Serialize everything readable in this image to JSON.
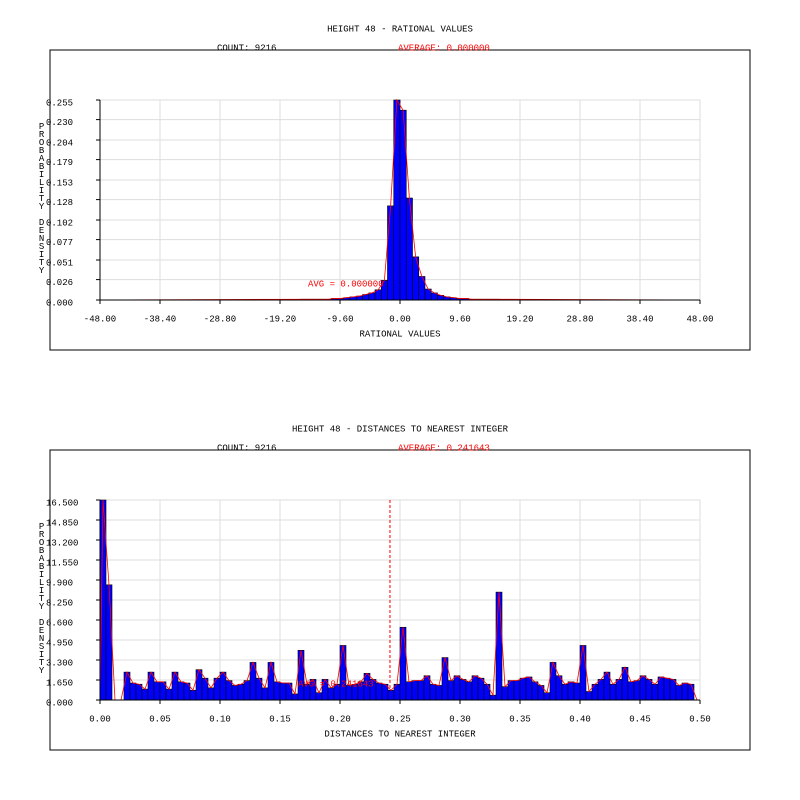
{
  "chart_data": [
    {
      "type": "histogram",
      "title": "HEIGHT 48 - RATIONAL VALUES",
      "count_label": "COUNT: 9216",
      "average_label": "AVERAGE: 0.000000",
      "average": 0,
      "avg_annotation": "AVG = 0.000000",
      "xlabel": "RATIONAL VALUES",
      "ylabel": "PROBABILITY DENSITY",
      "bins": [
        -16,
        -15,
        -14,
        -13,
        -12,
        -11,
        -10,
        -9,
        -8,
        -7,
        -6,
        -5,
        -4,
        -3,
        -2,
        -1,
        0,
        1,
        2,
        3,
        4,
        5,
        6,
        7,
        8,
        9,
        10,
        11,
        12,
        13,
        14,
        15,
        16
      ],
      "values": [
        0.001,
        0.001,
        0.001,
        0.001,
        0.001,
        0.002,
        0.002,
        0.003,
        0.004,
        0.005,
        0.007,
        0.009,
        0.013,
        0.025,
        0.12,
        0.255,
        0.242,
        0.13,
        0.055,
        0.03,
        0.014,
        0.009,
        0.006,
        0.004,
        0.003,
        0.002,
        0.002,
        0.001,
        0.001,
        0.001,
        0.001,
        0.001
      ],
      "color": "#0000ff",
      "line_color": "#ff0000",
      "xlim": [
        -48,
        48
      ],
      "xticks": [
        {
          "value": -48,
          "label": "-48.00"
        },
        {
          "value": -38.4,
          "label": "-38.40"
        },
        {
          "value": -28.8,
          "label": "-28.80"
        },
        {
          "value": -19.2,
          "label": "-19.20"
        },
        {
          "value": -9.6,
          "label": "-9.60"
        },
        {
          "value": 0,
          "label": "0.00"
        },
        {
          "value": 9.6,
          "label": "9.60"
        },
        {
          "value": 19.2,
          "label": "19.20"
        },
        {
          "value": 28.8,
          "label": "28.80"
        },
        {
          "value": 38.4,
          "label": "38.40"
        },
        {
          "value": 48,
          "label": "48.00"
        }
      ],
      "ylim": [
        0,
        0.255
      ],
      "yticks": [
        {
          "value": 0,
          "label": "0.000"
        },
        0.026,
        0.051,
        0.077,
        0.102,
        0.128,
        0.153,
        0.179,
        0.204,
        {
          "value": 0.23,
          "label": "0.230"
        },
        0.255
      ],
      "grid": true
    },
    {
      "type": "histogram",
      "title": "HEIGHT 48 - DISTANCES TO NEAREST INTEGER",
      "count_label": "COUNT: 9216",
      "average_label": "AVERAGE: 0.241643",
      "average": 0.241643,
      "avg_annotation": "AVG = 0.241643",
      "xlabel": "DISTANCES TO NEAREST INTEGER",
      "ylabel": "PROBABILITY DENSITY",
      "bins": [
        0,
        0.005,
        0.01,
        0.015,
        0.02,
        0.025,
        0.03,
        0.035,
        0.04,
        0.045,
        0.05,
        0.055,
        0.06,
        0.065,
        0.07,
        0.075,
        0.08,
        0.085,
        0.09,
        0.095,
        0.1,
        0.105,
        0.11,
        0.115,
        0.12,
        0.125,
        0.13,
        0.135,
        0.14,
        0.145,
        0.15,
        0.155,
        0.16,
        0.165,
        0.17,
        0.175,
        0.18,
        0.185,
        0.19,
        0.195,
        0.2,
        0.205,
        0.21,
        0.215,
        0.22,
        0.225,
        0.23,
        0.235,
        0.24,
        0.245,
        0.25,
        0.255,
        0.26,
        0.265,
        0.27,
        0.275,
        0.28,
        0.285,
        0.29,
        0.295,
        0.3,
        0.305,
        0.31,
        0.315,
        0.32,
        0.325,
        0.33,
        0.335,
        0.34,
        0.345,
        0.35,
        0.355,
        0.36,
        0.365,
        0.37,
        0.375,
        0.38,
        0.385,
        0.39,
        0.395,
        0.4,
        0.405,
        0.41,
        0.415,
        0.42,
        0.425,
        0.43,
        0.435,
        0.44,
        0.445,
        0.45,
        0.455,
        0.46,
        0.465,
        0.47,
        0.475,
        0.48,
        0.485,
        0.49,
        0.495,
        0.5
      ],
      "values": [
        16.5,
        9.5,
        0,
        0,
        2.3,
        1.4,
        1.3,
        0.9,
        2.3,
        1.5,
        1.5,
        0.9,
        2.3,
        1.5,
        1.4,
        0.8,
        2.5,
        1.8,
        1.0,
        1.8,
        2.3,
        1.6,
        1.2,
        1.3,
        1.6,
        3.1,
        1.8,
        1.0,
        3.1,
        1.5,
        1.4,
        1.4,
        0.5,
        4.1,
        1.3,
        1.7,
        0.6,
        1.7,
        1.0,
        1.3,
        4.5,
        1.2,
        1.3,
        1.5,
        2.2,
        1.7,
        1.4,
        1.3,
        0.8,
        1.3,
        6.0,
        1.5,
        1.6,
        1.6,
        2.0,
        1.3,
        1.2,
        3.5,
        1.6,
        2.0,
        1.7,
        1.5,
        2.0,
        1.8,
        1.3,
        0.4,
        8.9,
        1.1,
        1.6,
        1.6,
        1.8,
        1.9,
        1.5,
        1.2,
        0.6,
        3.1,
        2.0,
        1.3,
        1.5,
        1.4,
        4.5,
        0.7,
        1.3,
        1.7,
        2.3,
        1.3,
        1.7,
        2.7,
        1.5,
        1.6,
        2.0,
        1.7,
        1.3,
        1.9,
        1.8,
        1.7,
        1.2,
        1.4,
        1.3,
        0
      ],
      "color": "#0000ff",
      "line_color": "#ff0000",
      "xlim": [
        0,
        0.5
      ],
      "xticks": [
        {
          "value": 0,
          "label": "0.00"
        },
        0.05,
        {
          "value": 0.1,
          "label": "0.10"
        },
        0.15,
        {
          "value": 0.2,
          "label": "0.20"
        },
        0.25,
        {
          "value": 0.3,
          "label": "0.30"
        },
        0.35,
        {
          "value": 0.4,
          "label": "0.40"
        },
        0.45,
        {
          "value": 0.5,
          "label": "0.50"
        }
      ],
      "ylim": [
        0,
        16.5
      ],
      "yticks": [
        {
          "value": 0,
          "label": "0.000"
        },
        {
          "value": 1.65,
          "label": "1.650"
        },
        {
          "value": 3.3,
          "label": "3.300"
        },
        {
          "value": 4.95,
          "label": "4.950"
        },
        {
          "value": 6.6,
          "label": "6.600"
        },
        {
          "value": 8.25,
          "label": "8.250"
        },
        {
          "value": 9.9,
          "label": "9.900"
        },
        {
          "value": 11.55,
          "label": "11.550"
        },
        {
          "value": 13.2,
          "label": "13.200"
        },
        {
          "value": 14.85,
          "label": "14.850"
        },
        {
          "value": 16.5,
          "label": "16.500"
        }
      ],
      "grid": true
    }
  ]
}
